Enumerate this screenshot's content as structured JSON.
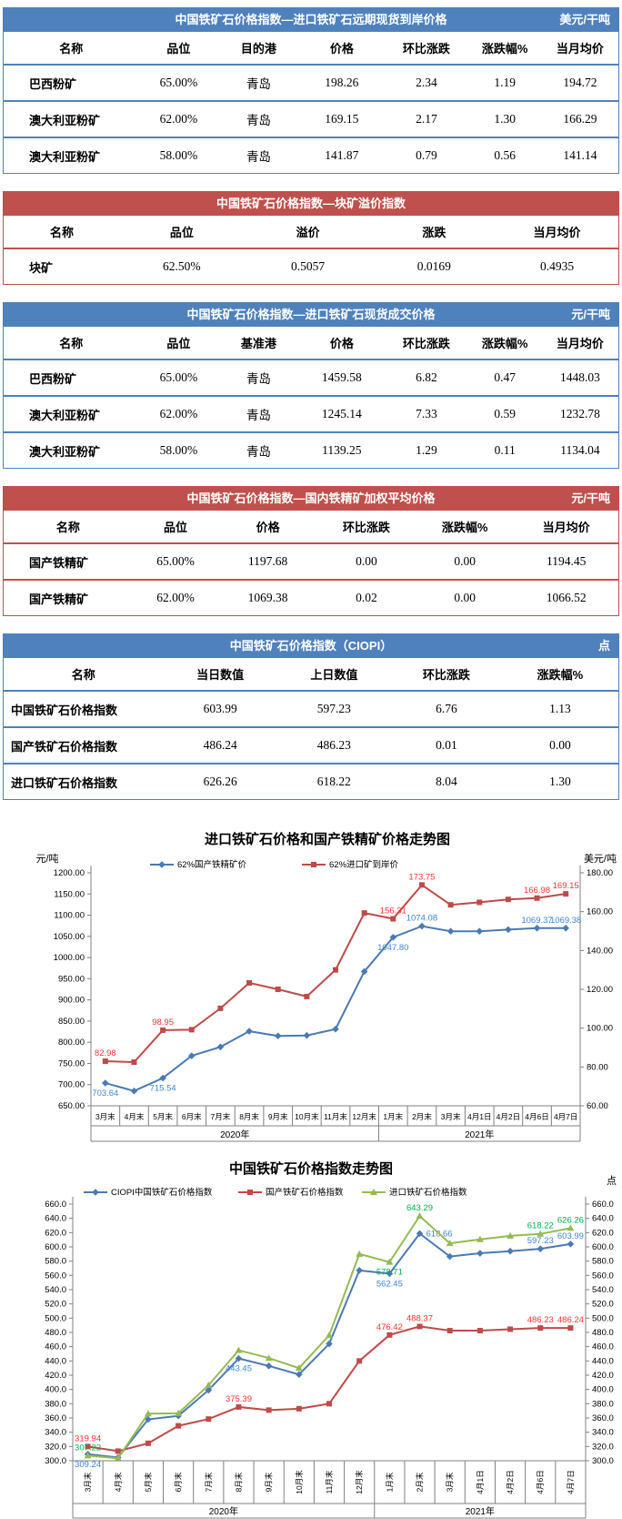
{
  "page": {
    "background": "#ffffff"
  },
  "theme": {
    "blue": "#4f81bd",
    "red": "#c0504d",
    "green": "#94ba52"
  },
  "tables": [
    {
      "id": "import-forward-spot-cif",
      "theme": "blue",
      "title": "中国铁矿石价格指数—进口铁矿石远期现货到岸价格",
      "unit": "美元/干吨",
      "headers": [
        "名称",
        "品位",
        "目的港",
        "价格",
        "环比涨跌",
        "涨跌幅%",
        "当月均价"
      ],
      "widths": [
        "22%",
        "13%",
        "13%",
        "14%",
        "13.5%",
        "12%",
        "12.5%"
      ],
      "rows": [
        [
          "巴西粉矿",
          "65.00%",
          "青岛",
          "198.26",
          "2.34",
          "1.19",
          "194.72"
        ],
        [
          "澳大利亚粉矿",
          "62.00%",
          "青岛",
          "169.15",
          "2.17",
          "1.30",
          "166.29"
        ],
        [
          "澳大利亚粉矿",
          "58.00%",
          "青岛",
          "141.87",
          "0.79",
          "0.56",
          "141.14"
        ]
      ]
    },
    {
      "id": "lump-premium-index",
      "theme": "red",
      "title": "中国铁矿石价格指数—块矿溢价指数",
      "unit": "",
      "headers": [
        "名称",
        "品位",
        "溢价",
        "涨跌",
        "当月均价"
      ],
      "widths": [
        "19%",
        "20%",
        "21%",
        "20%",
        "20%"
      ],
      "rows": [
        [
          "块矿",
          "62.50%",
          "0.5057",
          "0.0169",
          "0.4935"
        ]
      ]
    },
    {
      "id": "import-spot-transaction-price",
      "theme": "blue",
      "title": "中国铁矿石价格指数—进口铁矿石现货成交价格",
      "unit": "元/干吨",
      "headers": [
        "名称",
        "品位",
        "基准港",
        "价格",
        "环比涨跌",
        "涨跌幅%",
        "当月均价"
      ],
      "widths": [
        "22%",
        "13%",
        "13%",
        "14%",
        "13.5%",
        "12%",
        "12.5%"
      ],
      "rows": [
        [
          "巴西粉矿",
          "65.00%",
          "青岛",
          "1459.58",
          "6.82",
          "0.47",
          "1448.03"
        ],
        [
          "澳大利亚粉矿",
          "62.00%",
          "青岛",
          "1245.14",
          "7.33",
          "0.59",
          "1232.78"
        ],
        [
          "澳大利亚粉矿",
          "58.00%",
          "青岛",
          "1139.25",
          "1.29",
          "0.11",
          "1134.04"
        ]
      ]
    },
    {
      "id": "domestic-concentrate-weighted-avg",
      "theme": "red",
      "title": "中国铁矿石价格指数—国内铁精矿加权平均价格",
      "unit": "元/干吨",
      "headers": [
        "名称",
        "品位",
        "价格",
        "环比涨跌",
        "涨跌幅%",
        "当月均价"
      ],
      "widths": [
        "21%",
        "14%",
        "16%",
        "16%",
        "16%",
        "17%"
      ],
      "rows": [
        [
          "国产铁精矿",
          "65.00%",
          "1197.68",
          "0.00",
          "0.00",
          "1194.45"
        ],
        [
          "国产铁精矿",
          "62.00%",
          "1069.38",
          "0.02",
          "0.00",
          "1066.52"
        ]
      ]
    },
    {
      "id": "ciopi-index",
      "theme": "blue",
      "title": "中国铁矿石价格指数（CIOPI）",
      "unit": "点",
      "headers": [
        "名称",
        "当日数值",
        "上日数值",
        "环比涨跌",
        "涨跌幅%"
      ],
      "widths": [
        "26%",
        "18.5%",
        "18.5%",
        "18%",
        "19%"
      ],
      "rows": [
        [
          "中国铁矿石价格指数",
          "603.99",
          "597.23",
          "6.76",
          "1.13"
        ],
        [
          "国产铁矿石价格指数",
          "486.24",
          "486.23",
          "0.01",
          "0.00"
        ],
        [
          "进口铁矿石价格指数",
          "626.26",
          "618.22",
          "8.04",
          "1.30"
        ]
      ]
    }
  ],
  "chart_data": [
    {
      "type": "line",
      "title": "进口铁矿石价格和国产铁精矿价格走势图",
      "left_axis_unit": "元/吨",
      "right_axis_unit": "美元/吨",
      "grid": false,
      "legend_position": "top",
      "categories": [
        "3月末",
        "4月末",
        "5月末",
        "6月末",
        "7月末",
        "8月末",
        "9月末",
        "10月末",
        "11月末",
        "12月末",
        "1月末",
        "2月末",
        "3月末",
        "4月1日",
        "4月2日",
        "4月6日",
        "4月7日"
      ],
      "year_groups": [
        {
          "label": "2020年",
          "span": 10
        },
        {
          "label": "2021年",
          "span": 7
        }
      ],
      "left_ylim": [
        650,
        1200
      ],
      "right_ylim": [
        60,
        180
      ],
      "left_ticks": [
        "1200.00",
        "1150.00",
        "1100.00",
        "1050.00",
        "1000.00",
        "950.00",
        "900.00",
        "850.00",
        "800.00",
        "750.00",
        "700.00",
        "650.00"
      ],
      "right_ticks": [
        "180.00",
        "160.00",
        "140.00",
        "120.00",
        "100.00",
        "80.00",
        "60.00"
      ],
      "series": [
        {
          "name": "62%国产铁精矿价",
          "axis": "left",
          "color": "#4a7ab5",
          "label_color": "#3e86d6",
          "marker": "diamond",
          "values": [
            703.64,
            685.0,
            715.54,
            768.0,
            789.0,
            826.0,
            815.0,
            816.0,
            831.0,
            967.0,
            1047.8,
            1074.08,
            1062.0,
            1062.0,
            1066.0,
            1069.37,
            1069.38
          ],
          "point_labels": [
            {
              "i": 0,
              "t": "703.64",
              "pos": "below"
            },
            {
              "i": 2,
              "t": "715.54",
              "pos": "below"
            },
            {
              "i": 10,
              "t": "1047.80",
              "pos": "below"
            },
            {
              "i": 11,
              "t": "1074.08",
              "pos": "above"
            },
            {
              "i": 15,
              "t": "1069.37",
              "pos": "above"
            },
            {
              "i": 16,
              "t": "1069.38",
              "pos": "above"
            }
          ]
        },
        {
          "name": "62%进口矿到岸价",
          "axis": "right",
          "color": "#be4b48",
          "label_color": "#ff3333",
          "marker": "square",
          "values": [
            82.98,
            82.5,
            98.95,
            99.2,
            110.2,
            123.3,
            120.0,
            116.3,
            130.0,
            159.3,
            156.31,
            173.75,
            163.5,
            164.8,
            166.3,
            166.98,
            169.15
          ],
          "point_labels": [
            {
              "i": 0,
              "t": "82.98",
              "pos": "above"
            },
            {
              "i": 2,
              "t": "98.95",
              "pos": "above"
            },
            {
              "i": 10,
              "t": "156.31",
              "pos": "above"
            },
            {
              "i": 11,
              "t": "173.75",
              "pos": "above"
            },
            {
              "i": 15,
              "t": "166.98",
              "pos": "above"
            },
            {
              "i": 16,
              "t": "169.15",
              "pos": "above"
            }
          ]
        }
      ]
    },
    {
      "type": "line",
      "title": "中国铁矿石价格指数走势图",
      "right_axis_unit": "点",
      "grid": false,
      "legend_position": "top",
      "categories": [
        "3月末",
        "4月末",
        "5月末",
        "6月末",
        "7月末",
        "8月末",
        "9月末",
        "10月末",
        "11月末",
        "12月末",
        "1月末",
        "2月末",
        "3月末",
        "4月1日",
        "4月2日",
        "4月6日",
        "4月7日"
      ],
      "year_groups": [
        {
          "label": "2020年",
          "span": 10
        },
        {
          "label": "2021年",
          "span": 7
        }
      ],
      "left_ylim": [
        300,
        660
      ],
      "right_ylim": [
        300,
        660
      ],
      "left_ticks": [
        "660.0",
        "640.0",
        "620.0",
        "600.0",
        "580.0",
        "560.0",
        "540.0",
        "520.0",
        "500.0",
        "480.0",
        "460.0",
        "440.0",
        "420.0",
        "400.0",
        "380.0",
        "360.0",
        "340.0",
        "320.0",
        "300.0"
      ],
      "right_ticks": [
        "660.0",
        "640.0",
        "620.0",
        "600.0",
        "580.0",
        "560.0",
        "540.0",
        "520.0",
        "500.0",
        "480.0",
        "460.0",
        "440.0",
        "420.0",
        "400.0",
        "380.0",
        "360.0",
        "340.0",
        "320.0",
        "300.0"
      ],
      "series": [
        {
          "name": "CIOPI中国铁矿石价格指数",
          "axis": "left",
          "color": "#4a7ab5",
          "label_color": "#3e86d6",
          "marker": "diamond",
          "values": [
            309.24,
            304.5,
            358.0,
            363.0,
            399.0,
            443.45,
            433.0,
            421.0,
            464.0,
            567.0,
            562.45,
            618.66,
            586.5,
            591.0,
            594.0,
            597.23,
            603.99
          ],
          "point_labels": [
            {
              "i": 0,
              "t": "309.24",
              "pos": "below"
            },
            {
              "i": 5,
              "t": "443.45",
              "pos": "below"
            },
            {
              "i": 10,
              "t": "562.45",
              "pos": "below"
            },
            {
              "i": 11,
              "t": "618.66",
              "pos": "right"
            },
            {
              "i": 15,
              "t": "597.23",
              "pos": "above"
            },
            {
              "i": 16,
              "t": "603.99",
              "pos": "above"
            }
          ]
        },
        {
          "name": "国产铁矿石价格指数",
          "axis": "left",
          "color": "#be4b48",
          "label_color": "#ff3333",
          "marker": "square",
          "values": [
            319.94,
            313.5,
            324.5,
            349.0,
            358.5,
            375.39,
            371.0,
            373.0,
            380.0,
            440.0,
            476.42,
            488.37,
            482.5,
            482.5,
            484.5,
            486.23,
            486.24
          ],
          "point_labels": [
            {
              "i": 0,
              "t": "319.94",
              "pos": "above"
            },
            {
              "i": 5,
              "t": "375.39",
              "pos": "above"
            },
            {
              "i": 10,
              "t": "476.42",
              "pos": "above"
            },
            {
              "i": 11,
              "t": "488.37",
              "pos": "above"
            },
            {
              "i": 15,
              "t": "486.23",
              "pos": "above"
            },
            {
              "i": 16,
              "t": "486.24",
              "pos": "above"
            }
          ]
        },
        {
          "name": "进口铁矿石价格指数",
          "axis": "left",
          "color": "#94ba52",
          "label_color": "#00b050",
          "marker": "triangle",
          "values": [
            307.22,
            303.5,
            366.0,
            366.5,
            406.0,
            455.0,
            444.0,
            430.0,
            476.0,
            590.0,
            578.71,
            643.29,
            605.0,
            610.5,
            615.5,
            618.22,
            626.26
          ],
          "point_labels": [
            {
              "i": 0,
              "t": "307.22",
              "pos": "above"
            },
            {
              "i": 10,
              "t": "578.71",
              "pos": "below"
            },
            {
              "i": 11,
              "t": "643.29",
              "pos": "above"
            },
            {
              "i": 15,
              "t": "618.22",
              "pos": "above"
            },
            {
              "i": 16,
              "t": "626.26",
              "pos": "above"
            }
          ]
        }
      ]
    }
  ]
}
